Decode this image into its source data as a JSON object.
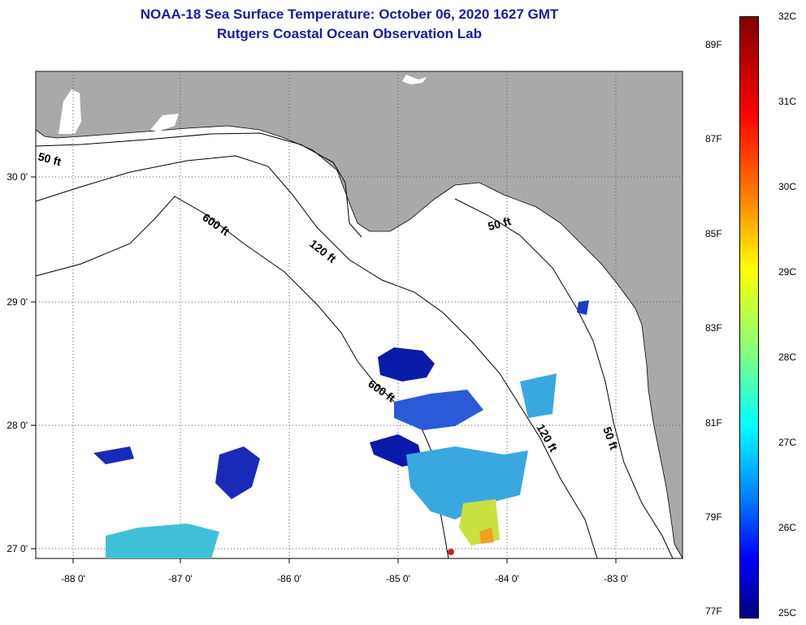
{
  "title": {
    "line1": "NOAA-18 Sea Surface Temperature:  October 06, 2020 1627 GMT",
    "line2": "Rutgers Coastal Ocean Observation Lab"
  },
  "map": {
    "lon_labels": [
      "-88 0'",
      "-87 0'",
      "-86 0'",
      "-85 0'",
      "-84 0'",
      "-83 0'"
    ],
    "lat_labels": [
      "30 0'",
      "29 0'",
      "28 0'",
      "27 0'"
    ],
    "contours": [
      "50 ft",
      "600 ft",
      "120 ft",
      "50 ft",
      "600 ft",
      "120 ft",
      "50 ft"
    ],
    "colors": {
      "land": "#a9a9a9",
      "ocean": "#ffffff",
      "cold": "#0a1aa8",
      "mid": "#3aa8e0",
      "warm": "#c8e040"
    }
  },
  "colorbar": {
    "fahrenheit": [
      "89F",
      "87F",
      "85F",
      "83F",
      "81F",
      "79F",
      "77F"
    ],
    "celsius": [
      "32C",
      "31C",
      "30C",
      "29C",
      "28C",
      "27C",
      "26C",
      "25C"
    ]
  }
}
